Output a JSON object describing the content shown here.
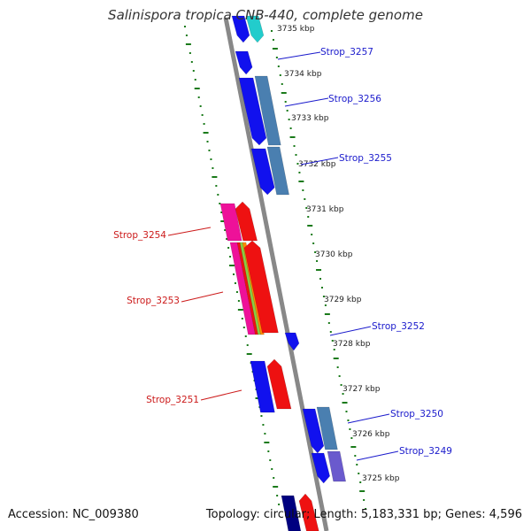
{
  "title": "Salinispora tropica CNB-440, complete genome",
  "footer": {
    "accession": "Accession: NC_009380",
    "topology": "Topology: circular; Length: 5,183,331 bp; Genes: 4,596"
  },
  "colors": {
    "axis": "#888888",
    "ticks": "#1a7a1a",
    "forward_label": "#1a1acc",
    "reverse_label": "#cc1a1a",
    "blue": "#1111ee",
    "red": "#ee1111",
    "steelblue": "#4a7fb0",
    "cyan": "#22cccc",
    "magenta": "#ee1199",
    "purple": "#6a5acd",
    "navy": "#000080"
  },
  "kbp_labels": [
    "3735 kbp",
    "3734 kbp",
    "3733 kbp",
    "3732 kbp",
    "3731 kbp",
    "3730 kbp",
    "3729 kbp",
    "3728 kbp",
    "3727 kbp",
    "3726 kbp",
    "3725 kbp"
  ],
  "gene_labels": [
    {
      "text": "Strop_3257",
      "side": "right"
    },
    {
      "text": "Strop_3256",
      "side": "right"
    },
    {
      "text": "Strop_3255",
      "side": "right"
    },
    {
      "text": "Strop_3254",
      "side": "left"
    },
    {
      "text": "Strop_3253",
      "side": "left"
    },
    {
      "text": "Strop_3252",
      "side": "right"
    },
    {
      "text": "Strop_3251",
      "side": "left"
    },
    {
      "text": "Strop_3250",
      "side": "right"
    },
    {
      "text": "Strop_3249",
      "side": "right"
    }
  ]
}
